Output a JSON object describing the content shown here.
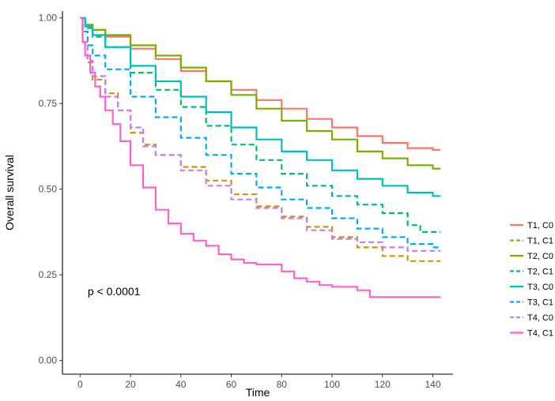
{
  "chart_data": {
    "type": "line",
    "step": true,
    "title": "",
    "xlabel": "Time",
    "ylabel": "Overall survival",
    "xlim": [
      -7,
      148
    ],
    "ylim": [
      -0.04,
      1.02
    ],
    "xticks": [
      0,
      20,
      40,
      60,
      80,
      100,
      120,
      140
    ],
    "xtick_labels": [
      "0",
      "20",
      "40",
      "60",
      "80",
      "100",
      "120",
      "140"
    ],
    "yticks": [
      0.0,
      0.25,
      0.5,
      0.75,
      1.0
    ],
    "ytick_labels": [
      "0.00",
      "0.25",
      "0.50",
      "0.75",
      "1.00"
    ],
    "grid": false,
    "legend_position": "right",
    "annotation": "p < 0.0001",
    "annotation_at": {
      "x": 3,
      "y": 0.19
    },
    "series": [
      {
        "name": "T1, C0",
        "color": "#F8766D",
        "dash": "solid",
        "x": [
          0,
          2,
          5,
          10,
          20,
          30,
          40,
          50,
          60,
          70,
          80,
          90,
          100,
          110,
          120,
          130,
          140,
          143
        ],
        "y": [
          1.0,
          0.98,
          0.965,
          0.945,
          0.91,
          0.88,
          0.845,
          0.815,
          0.79,
          0.76,
          0.735,
          0.705,
          0.68,
          0.655,
          0.635,
          0.62,
          0.615,
          0.615
        ]
      },
      {
        "name": "T1, C1",
        "color": "#CD9600",
        "dash": "dashed",
        "x": [
          0,
          1,
          3,
          5,
          10,
          15,
          20,
          25,
          30,
          40,
          50,
          60,
          70,
          80,
          90,
          100,
          110,
          120,
          130,
          143
        ],
        "y": [
          1.0,
          0.93,
          0.87,
          0.82,
          0.78,
          0.73,
          0.665,
          0.63,
          0.6,
          0.565,
          0.525,
          0.485,
          0.45,
          0.42,
          0.39,
          0.36,
          0.33,
          0.305,
          0.29,
          0.29
        ]
      },
      {
        "name": "T2, C0",
        "color": "#7CAE00",
        "dash": "solid",
        "x": [
          0,
          2,
          5,
          10,
          20,
          30,
          40,
          50,
          60,
          70,
          80,
          90,
          100,
          110,
          120,
          130,
          140,
          143
        ],
        "y": [
          1.0,
          0.98,
          0.965,
          0.95,
          0.92,
          0.89,
          0.855,
          0.815,
          0.775,
          0.735,
          0.7,
          0.67,
          0.645,
          0.61,
          0.59,
          0.57,
          0.56,
          0.56
        ]
      },
      {
        "name": "T2, C1",
        "color": "#00BE67",
        "dash": "dashed",
        "x": [
          0,
          2,
          5,
          10,
          20,
          30,
          40,
          50,
          60,
          70,
          80,
          90,
          100,
          110,
          120,
          130,
          135,
          143
        ],
        "y": [
          1.0,
          0.97,
          0.945,
          0.915,
          0.84,
          0.79,
          0.74,
          0.685,
          0.63,
          0.585,
          0.545,
          0.51,
          0.48,
          0.455,
          0.43,
          0.395,
          0.375,
          0.375
        ]
      },
      {
        "name": "T3, C0",
        "color": "#00BFC4",
        "dash": "solid",
        "x": [
          0,
          2,
          5,
          10,
          20,
          30,
          40,
          50,
          60,
          70,
          80,
          90,
          100,
          110,
          120,
          130,
          140,
          143
        ],
        "y": [
          1.0,
          0.975,
          0.95,
          0.915,
          0.86,
          0.815,
          0.77,
          0.725,
          0.68,
          0.645,
          0.61,
          0.585,
          0.555,
          0.53,
          0.51,
          0.49,
          0.48,
          0.48
        ]
      },
      {
        "name": "T3, C1",
        "color": "#00A9FF",
        "dash": "dashed",
        "x": [
          0,
          1,
          3,
          5,
          10,
          20,
          30,
          40,
          50,
          60,
          70,
          80,
          90,
          100,
          110,
          120,
          130,
          140,
          143
        ],
        "y": [
          1.0,
          0.96,
          0.92,
          0.89,
          0.85,
          0.77,
          0.71,
          0.65,
          0.6,
          0.545,
          0.505,
          0.47,
          0.445,
          0.415,
          0.385,
          0.36,
          0.34,
          0.33,
          0.33
        ]
      },
      {
        "name": "T4, C0",
        "color": "#C77CFF",
        "dash": "dashed",
        "x": [
          0,
          1,
          3,
          5,
          10,
          15,
          20,
          25,
          30,
          40,
          50,
          60,
          70,
          80,
          90,
          100,
          110,
          120,
          130,
          143
        ],
        "y": [
          1.0,
          0.93,
          0.875,
          0.83,
          0.77,
          0.73,
          0.68,
          0.625,
          0.6,
          0.555,
          0.51,
          0.47,
          0.445,
          0.415,
          0.38,
          0.355,
          0.345,
          0.33,
          0.32,
          0.32
        ]
      },
      {
        "name": "T4, C1",
        "color": "#FF61CC",
        "dash": "solid",
        "x": [
          0,
          1,
          2,
          4,
          6,
          8,
          10,
          13,
          16,
          20,
          25,
          30,
          35,
          40,
          45,
          50,
          55,
          60,
          65,
          70,
          80,
          85,
          90,
          95,
          100,
          110,
          115,
          120,
          130,
          143
        ],
        "y": [
          1.0,
          0.93,
          0.89,
          0.84,
          0.8,
          0.77,
          0.73,
          0.69,
          0.64,
          0.57,
          0.505,
          0.44,
          0.4,
          0.37,
          0.35,
          0.335,
          0.31,
          0.295,
          0.285,
          0.28,
          0.26,
          0.24,
          0.23,
          0.22,
          0.215,
          0.205,
          0.185,
          0.185,
          0.185,
          0.185
        ]
      }
    ]
  }
}
